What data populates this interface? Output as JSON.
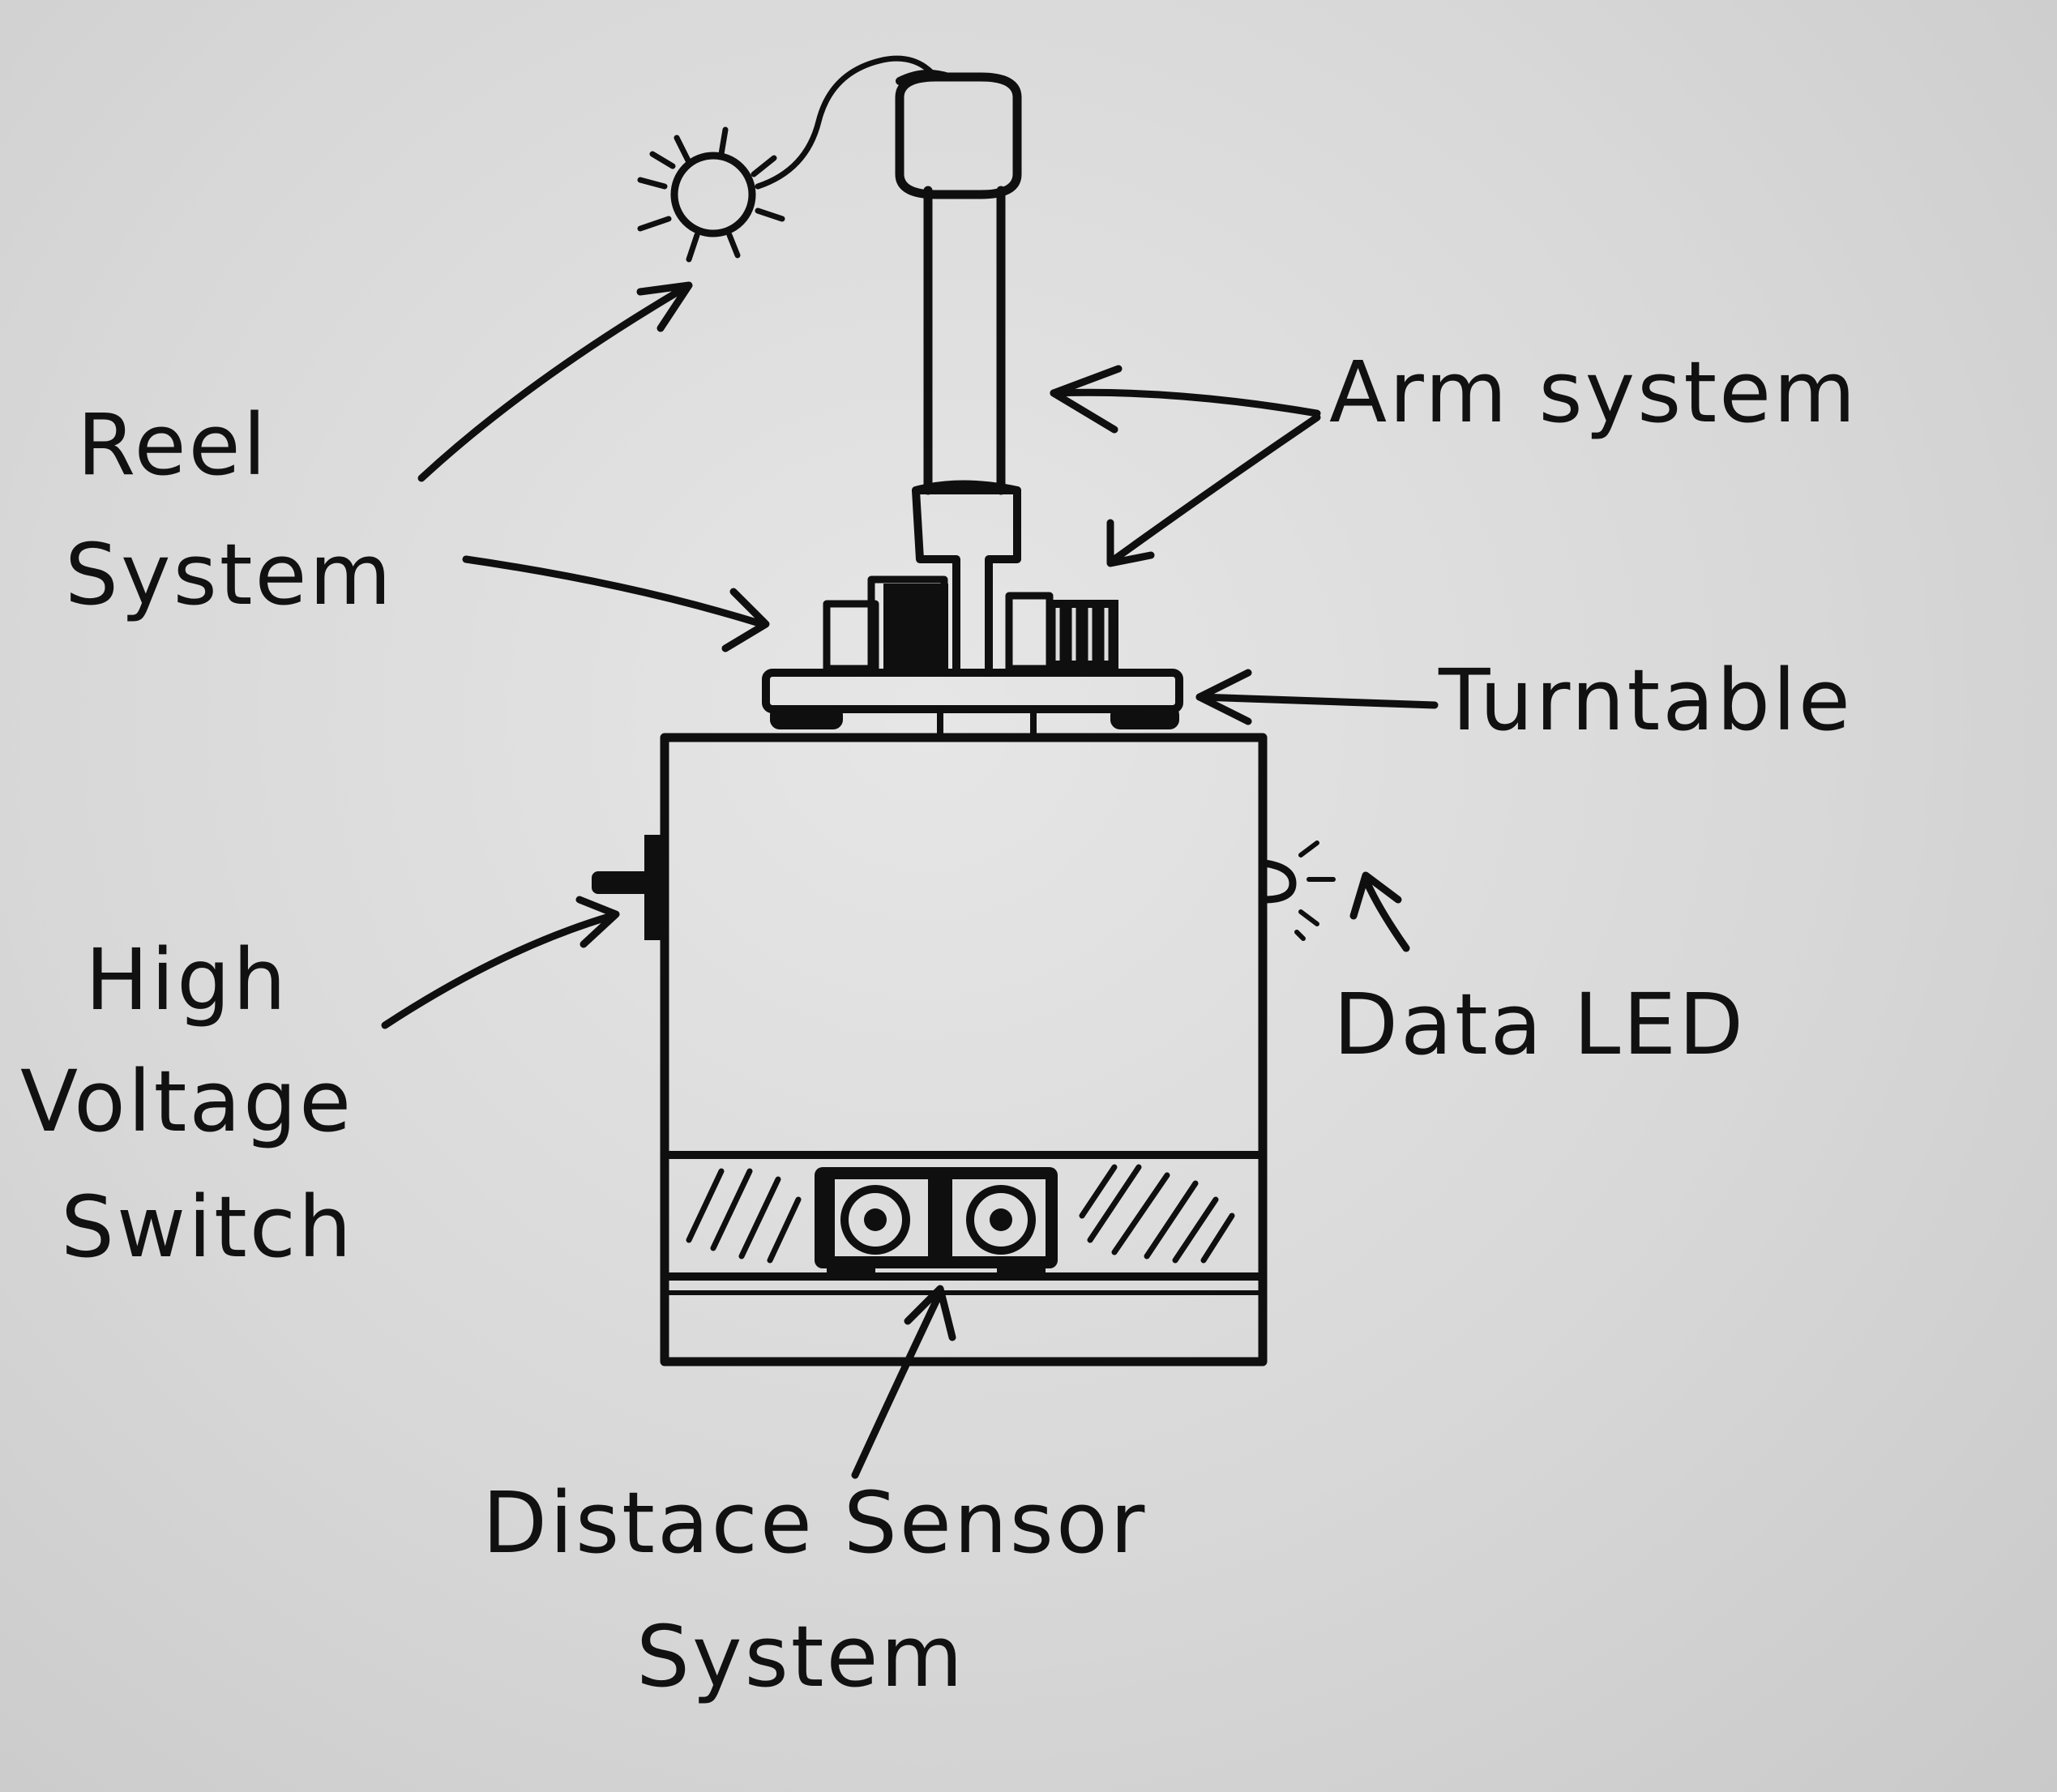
{
  "labels": {
    "reel_line1": "Reel",
    "reel_line2": "System",
    "arm": "Arm system",
    "turntable": "Turntable",
    "hv_line1": "High",
    "hv_line2": "Voltage",
    "hv_line3": "Switch",
    "led": "Data LED",
    "dist_line1": "Distace Sensor",
    "dist_line2": "System"
  },
  "colors": {
    "ink": "#0f0f0f",
    "paper": "#d9d9d9"
  }
}
